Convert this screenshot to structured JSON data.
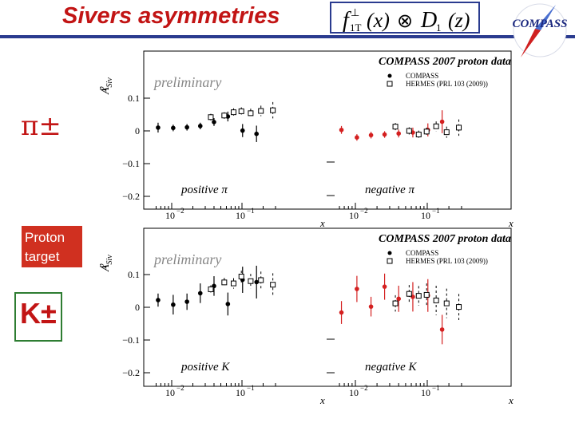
{
  "slide_title": "Sivers asymmetries",
  "formula": {
    "f": "f",
    "sub": "1T",
    "sup": "⊥",
    "x": "(x)",
    "otimes": "⊗",
    "D": "D",
    "D_sub": "1",
    "z": "(z)"
  },
  "logo_text": "COMPASS",
  "left_labels": {
    "pi": "π±",
    "target": "Proton target",
    "kaon": "K±"
  },
  "chart_data": [
    {
      "type": "scatter",
      "title": "COMPASS 2007 proton data",
      "watermark": "preliminary",
      "ylabel": "A^p_Siv",
      "xlabel": "x",
      "xscale": "log",
      "ylim": [
        -0.22,
        0.18
      ],
      "yticks": [
        "0.1",
        "0",
        "−0.1",
        "−0.2"
      ],
      "xticks": [
        "10⁻²",
        "10⁻¹"
      ],
      "legend": [
        "COMPASS",
        "HERMES (PRL 103 (2009))"
      ],
      "panels": [
        {
          "label": "positive π",
          "series": [
            {
              "name": "COMPASS",
              "x": [
                0.0064,
                0.0105,
                0.0165,
                0.0255,
                0.04,
                0.063,
                0.102,
                0.161
              ],
              "y": [
                0.01,
                0.009,
                0.011,
                0.015,
                0.027,
                0.044,
                0.001,
                -0.009
              ],
              "err": [
                0.015,
                0.01,
                0.01,
                0.01,
                0.012,
                0.015,
                0.02,
                0.025
              ]
            },
            {
              "name": "HERMES",
              "x": [
                0.036,
                0.056,
                0.076,
                0.098,
                0.133,
                0.186,
                0.275
              ],
              "y": [
                0.042,
                0.047,
                0.057,
                0.06,
                0.054,
                0.061,
                0.063
              ],
              "err": [
                0.01,
                0.01,
                0.012,
                0.012,
                0.014,
                0.016,
                0.025
              ]
            }
          ]
        },
        {
          "label": "negative π",
          "series": [
            {
              "name": "COMPASS",
              "x": [
                0.0064,
                0.0105,
                0.0165,
                0.0255,
                0.04,
                0.063,
                0.102,
                0.161
              ],
              "y": [
                0.003,
                -0.02,
                -0.013,
                -0.011,
                -0.008,
                -0.005,
                0.003,
                0.028
              ],
              "err": [
                0.012,
                0.01,
                0.01,
                0.01,
                0.012,
                0.015,
                0.02,
                0.035
              ]
            },
            {
              "name": "HERMES",
              "x": [
                0.036,
                0.056,
                0.076,
                0.098,
                0.133,
                0.186,
                0.275
              ],
              "y": [
                0.013,
                0.0,
                -0.011,
                -0.002,
                0.014,
                -0.004,
                0.01
              ],
              "err": [
                0.011,
                0.011,
                0.012,
                0.012,
                0.015,
                0.017,
                0.025
              ]
            }
          ]
        }
      ]
    },
    {
      "type": "scatter",
      "title": "COMPASS 2007 proton data",
      "watermark": "preliminary",
      "ylabel": "A^p_Siv",
      "xlabel": "x",
      "xscale": "log",
      "ylim": [
        -0.22,
        0.18
      ],
      "yticks": [
        "0.1",
        "0",
        "−0.1",
        "−0.2"
      ],
      "xticks": [
        "10⁻²",
        "10⁻¹"
      ],
      "legend": [
        "COMPASS",
        "HERMES (PRL 103 (2009))"
      ],
      "panels": [
        {
          "label": "positive K",
          "series": [
            {
              "name": "COMPASS",
              "x": [
                0.0064,
                0.0105,
                0.0165,
                0.0255,
                0.04,
                0.063,
                0.102,
                0.161
              ],
              "y": [
                0.022,
                0.008,
                0.017,
                0.043,
                0.065,
                0.01,
                0.084,
                0.077
              ],
              "err": [
                0.02,
                0.03,
                0.025,
                0.03,
                0.03,
                0.035,
                0.04,
                0.05
              ]
            },
            {
              "name": "HERMES",
              "x": [
                0.036,
                0.056,
                0.076,
                0.098,
                0.133,
                0.186,
                0.275
              ],
              "y": [
                0.055,
                0.076,
                0.073,
                0.094,
                0.08,
                0.083,
                0.069
              ],
              "err": [
                0.012,
                0.014,
                0.016,
                0.018,
                0.022,
                0.026,
                0.035
              ]
            }
          ]
        },
        {
          "label": "negative K",
          "series": [
            {
              "name": "COMPASS",
              "x": [
                0.0064,
                0.0105,
                0.0165,
                0.0255,
                0.04,
                0.063,
                0.102,
                0.161
              ],
              "y": [
                -0.016,
                0.056,
                0.002,
                0.063,
                0.026,
                0.032,
                0.036,
                -0.068
              ],
              "err": [
                0.035,
                0.04,
                0.03,
                0.04,
                0.04,
                0.045,
                0.05,
                0.045
              ]
            },
            {
              "name": "HERMES",
              "x": [
                0.036,
                0.056,
                0.076,
                0.098,
                0.133,
                0.186,
                0.275
              ],
              "y": [
                0.012,
                0.041,
                0.035,
                0.038,
                0.021,
                0.012,
                0.001
              ],
              "err": [
                0.025,
                0.027,
                0.03,
                0.035,
                0.045,
                0.045,
                0.04
              ]
            }
          ]
        }
      ]
    }
  ]
}
